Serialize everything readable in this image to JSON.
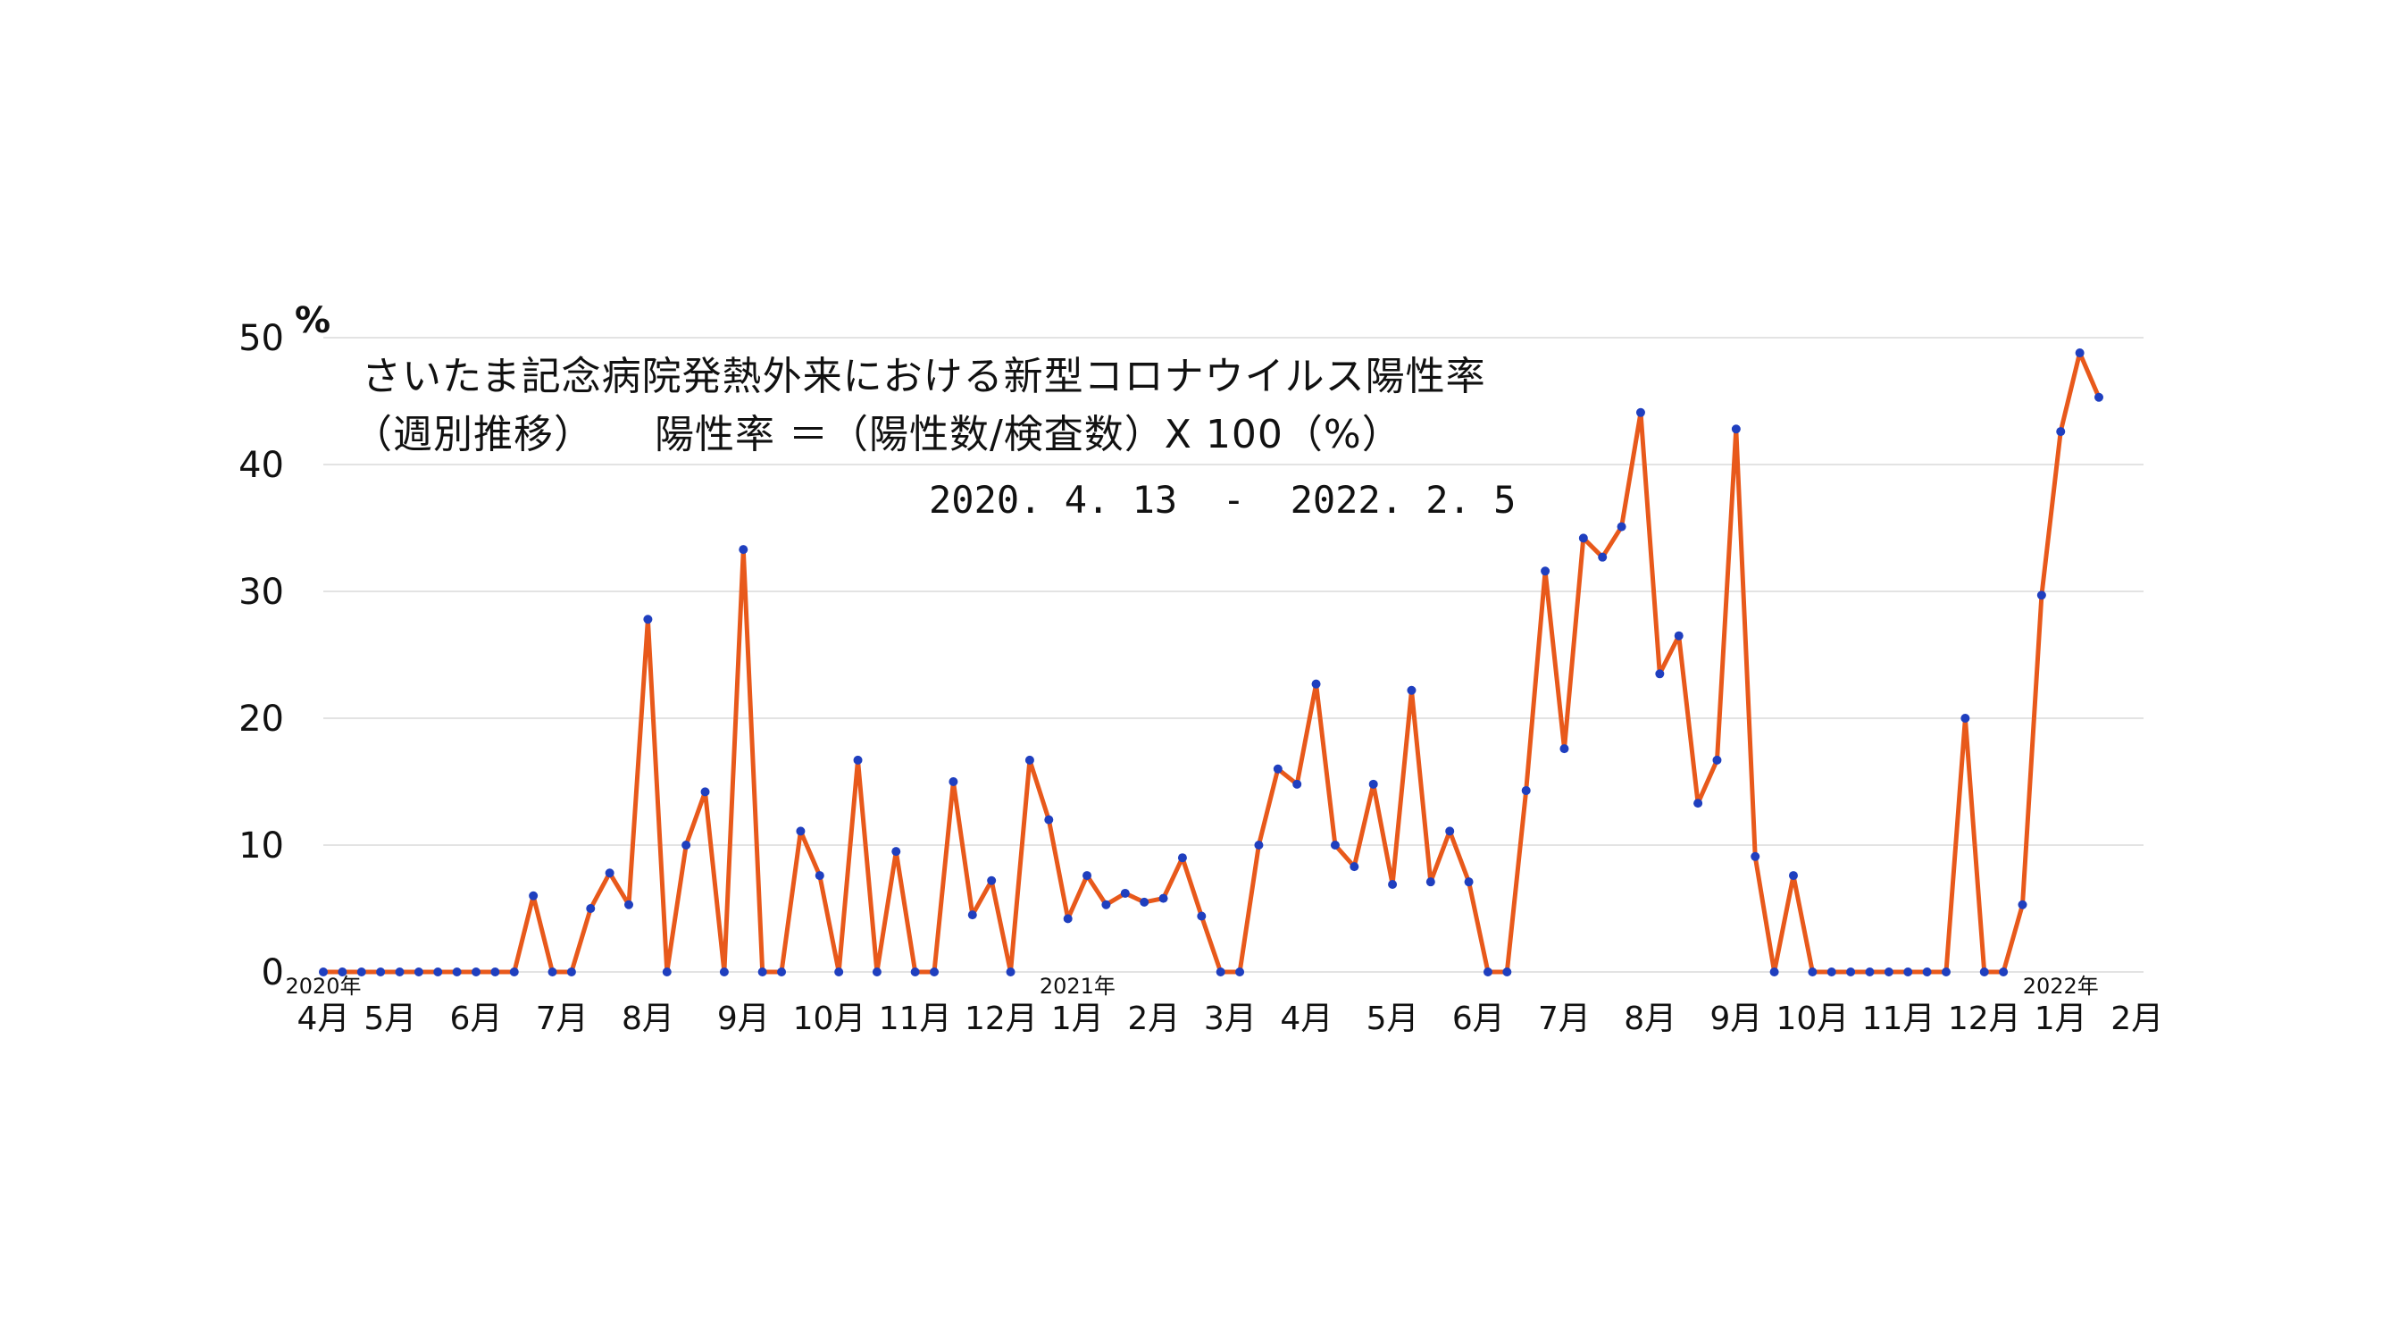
{
  "chart_data": {
    "type": "line",
    "title": "さいたま記念病院発熱外来における新型コロナウイルス陽性率",
    "subtitle": "（週別推移）　　陽性率 ＝（陽性数/検査数）X 100（%）",
    "date_range": "2020. 4. 13  -  2022. 2. 5",
    "ylabel": "%",
    "ylim": [
      0,
      50
    ],
    "y_ticks": [
      "0",
      "10",
      "20",
      "30",
      "40",
      "50"
    ],
    "grid": true,
    "line_color": "#e8591b",
    "marker_color": "#1f3fbf",
    "x_month_labels": [
      {
        "label": "4月",
        "week": 0
      },
      {
        "label": "5月",
        "week": 3.5
      },
      {
        "label": "6月",
        "week": 8
      },
      {
        "label": "7月",
        "week": 12.5
      },
      {
        "label": "8月",
        "week": 17
      },
      {
        "label": "9月",
        "week": 22
      },
      {
        "label": "10月",
        "week": 26.5
      },
      {
        "label": "11月",
        "week": 31
      },
      {
        "label": "12月",
        "week": 35.5
      },
      {
        "label": "1月",
        "week": 39.5
      },
      {
        "label": "2月",
        "week": 43.5
      },
      {
        "label": "3月",
        "week": 47.5
      },
      {
        "label": "4月",
        "week": 51.5
      },
      {
        "label": "5月",
        "week": 56
      },
      {
        "label": "6月",
        "week": 60.5
      },
      {
        "label": "7月",
        "week": 65
      },
      {
        "label": "8月",
        "week": 69.5
      },
      {
        "label": "9月",
        "week": 74
      },
      {
        "label": "10月",
        "week": 78
      },
      {
        "label": "11月",
        "week": 82.5
      },
      {
        "label": "12月",
        "week": 87
      },
      {
        "label": "1月",
        "week": 91
      },
      {
        "label": "2月",
        "week": 95
      }
    ],
    "year_labels": [
      {
        "label": "2020年",
        "week": 0
      },
      {
        "label": "2021年",
        "week": 39.5
      },
      {
        "label": "2022年",
        "week": 91
      }
    ],
    "series": [
      {
        "values": [
          0,
          0,
          0,
          0,
          0,
          0,
          0,
          0,
          0,
          0,
          0,
          6,
          0,
          0,
          5,
          7.8,
          5.3,
          27.8,
          0,
          10,
          14.2,
          0,
          33.3,
          0,
          0,
          11.1,
          7.6,
          0,
          16.7,
          0,
          9.5,
          0,
          0,
          15,
          4.5,
          7.2,
          0,
          16.7,
          12,
          4.2,
          7.6,
          5.3,
          6.2,
          5.5,
          5.8,
          9,
          4.4,
          0,
          0,
          10,
          16,
          14.8,
          22.7,
          10,
          8.3,
          14.8,
          6.9,
          22.2,
          7.1,
          11.1,
          7.1,
          0,
          0,
          14.3,
          31.6,
          17.6,
          34.2,
          32.7,
          35.1,
          44.1,
          23.5,
          26.5,
          13.3,
          16.7,
          42.8,
          9.1,
          0,
          7.6,
          0,
          0,
          0,
          0,
          0,
          0,
          0,
          0,
          20,
          0,
          0,
          5.3,
          29.7,
          42.6,
          48.8,
          45.3
        ]
      }
    ]
  }
}
